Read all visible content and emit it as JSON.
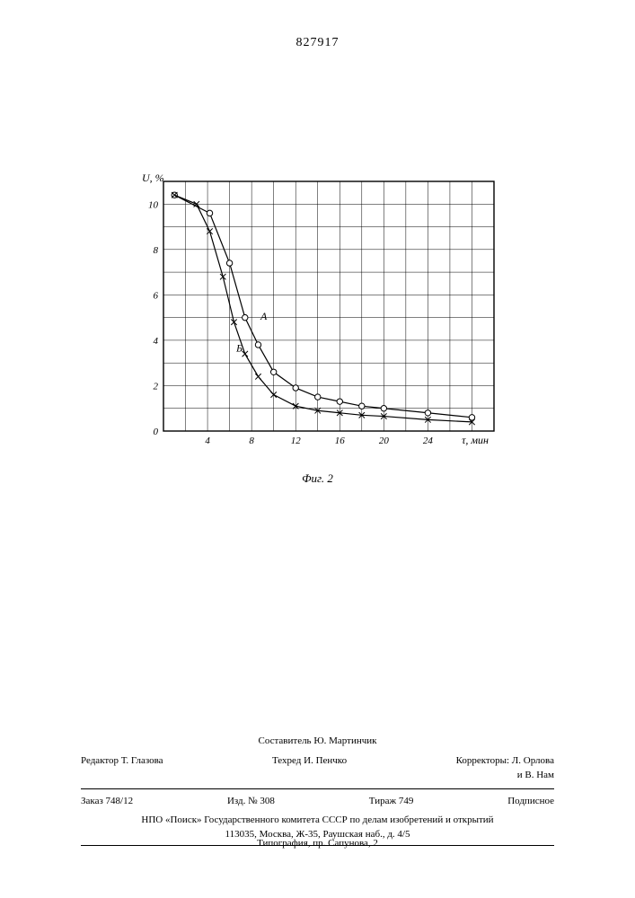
{
  "doc_number": "827917",
  "figure_caption": "Фиг. 2",
  "chart": {
    "type": "line",
    "background_color": "#ffffff",
    "grid_color": "#000000",
    "axis_color": "#000000",
    "line_color": "#000000",
    "text_color": "#000000",
    "x": {
      "label": "τ, мин",
      "min": 0,
      "max": 30,
      "major_step": 4,
      "tick_labels": [
        "4",
        "8",
        "12",
        "16",
        "20",
        "24"
      ],
      "grid_step": 2
    },
    "y": {
      "label": "U, %",
      "min": 0,
      "max": 11,
      "tick_labels": [
        "0",
        "2",
        "4",
        "6",
        "8",
        "10"
      ],
      "grid_step": 1
    },
    "series": [
      {
        "name": "A",
        "marker": "circle",
        "label_pos": {
          "x": 8.8,
          "y": 4.9
        },
        "points": [
          {
            "x": 1.0,
            "y": 10.4
          },
          {
            "x": 4.2,
            "y": 9.6
          },
          {
            "x": 6.0,
            "y": 7.4
          },
          {
            "x": 7.4,
            "y": 5.0
          },
          {
            "x": 8.6,
            "y": 3.8
          },
          {
            "x": 10.0,
            "y": 2.6
          },
          {
            "x": 12.0,
            "y": 1.9
          },
          {
            "x": 14.0,
            "y": 1.5
          },
          {
            "x": 16.0,
            "y": 1.3
          },
          {
            "x": 18.0,
            "y": 1.1
          },
          {
            "x": 20.0,
            "y": 1.0
          },
          {
            "x": 24.0,
            "y": 0.8
          },
          {
            "x": 28.0,
            "y": 0.6
          }
        ]
      },
      {
        "name": "Б",
        "marker": "x",
        "label_pos": {
          "x": 6.6,
          "y": 3.5
        },
        "points": [
          {
            "x": 1.0,
            "y": 10.4
          },
          {
            "x": 3.0,
            "y": 10.0
          },
          {
            "x": 4.2,
            "y": 8.8
          },
          {
            "x": 5.4,
            "y": 6.8
          },
          {
            "x": 6.4,
            "y": 4.8
          },
          {
            "x": 7.4,
            "y": 3.4
          },
          {
            "x": 8.6,
            "y": 2.4
          },
          {
            "x": 10.0,
            "y": 1.6
          },
          {
            "x": 12.0,
            "y": 1.1
          },
          {
            "x": 14.0,
            "y": 0.9
          },
          {
            "x": 16.0,
            "y": 0.8
          },
          {
            "x": 18.0,
            "y": 0.7
          },
          {
            "x": 20.0,
            "y": 0.65
          },
          {
            "x": 24.0,
            "y": 0.5
          },
          {
            "x": 28.0,
            "y": 0.4
          }
        ]
      }
    ],
    "font_size_ticks": 11,
    "font_size_labels": 12,
    "line_width": 1.2,
    "marker_size": 3.2
  },
  "credits": {
    "compiler_line": "Составитель Ю. Мартинчик",
    "editor": "Редактор Т. Глазова",
    "techred": "Техред И. Пенчко",
    "correctors": "Корректоры: Л. Орлова\nи В. Нам",
    "order": "Заказ 748/12",
    "izd": "Изд. № 308",
    "tirazh": "Тираж 749",
    "subscr": "Подписное",
    "publisher_line1": "НПО «Поиск» Государственного комитета СССР по делам изобретений и открытий",
    "publisher_line2": "113035, Москва, Ж-35, Раушская наб., д. 4/5"
  },
  "printer_line": "Типография, пр. Сапунова, 2"
}
